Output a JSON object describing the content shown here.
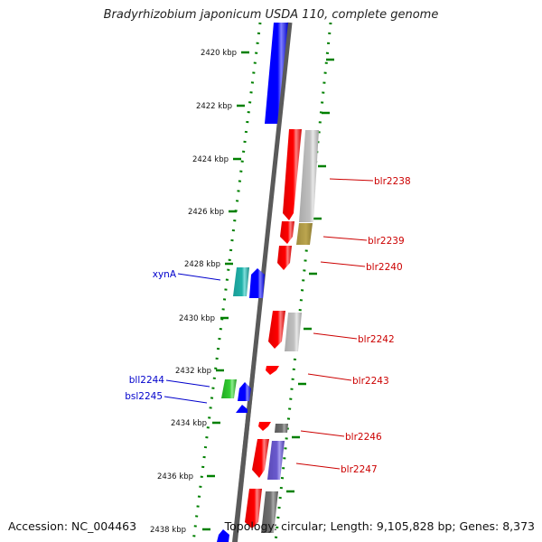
{
  "title": "Bradyrhizobium japonicum USDA 110, complete genome",
  "accession_text": "Accession: NC_004463",
  "summary_text": "Topology: circular; Length: 9,105,828 bp; Genes: 8,373",
  "colors": {
    "axis": "#808080",
    "ticks": "#008000",
    "forward_label": "#cc0000",
    "reverse_label": "#0000cc",
    "grey_feature": "#b8b8b8",
    "dark_feature": "#6e6e6e",
    "olive_feature": "#b8a04a",
    "purple_feature": "#6a5acd",
    "cyan_feature": "#20b2aa",
    "green_feature": "#32cd32",
    "blue_feature": "#0000ff",
    "red_feature": "#ff0000"
  },
  "scale_labels": [
    "2420 kbp",
    "2422 kbp",
    "2424 kbp",
    "2426 kbp",
    "2428 kbp",
    "2430 kbp",
    "2432 kbp",
    "2434 kbp",
    "2436 kbp",
    "2438 kbp"
  ],
  "gene_labels": {
    "right": [
      "blr2238",
      "blr2239",
      "blr2240",
      "blr2242",
      "blr2243",
      "blr2246",
      "blr2247"
    ],
    "left": [
      "xynA",
      "bll2244",
      "bsl2245"
    ]
  },
  "features": [
    {
      "name": "blue-gene-large",
      "strand": "reverse",
      "start": 2418.9,
      "end": 2422.4,
      "color": "blue"
    },
    {
      "name": "blr2238",
      "strand": "forward",
      "start": 2423.5,
      "end": 2426.9,
      "color": "red",
      "label": "blr2238"
    },
    {
      "name": "grey-gene-1",
      "strand": "forward-outer",
      "start": 2423.5,
      "end": 2427.0,
      "color": "grey"
    },
    {
      "name": "blr2239",
      "strand": "forward",
      "start": 2427.0,
      "end": 2427.8,
      "color": "red",
      "label": "blr2239"
    },
    {
      "name": "olive-gene",
      "strand": "forward-outer",
      "start": 2427.0,
      "end": 2427.8,
      "color": "olive"
    },
    {
      "name": "blr2240",
      "strand": "forward",
      "start": 2427.9,
      "end": 2428.8,
      "color": "red",
      "label": "blr2240"
    },
    {
      "name": "xynA",
      "strand": "reverse-outer",
      "start": 2428.8,
      "end": 2429.9,
      "color": "cyan",
      "label": "xynA"
    },
    {
      "name": "blue-gene-mid",
      "strand": "reverse",
      "start": 2428.8,
      "end": 2429.9,
      "color": "blue"
    },
    {
      "name": "blr2242",
      "strand": "forward",
      "start": 2430.0,
      "end": 2431.5,
      "color": "red",
      "label": "blr2242"
    },
    {
      "name": "grey-gene-2",
      "strand": "forward-outer",
      "start": 2430.0,
      "end": 2431.5,
      "color": "grey"
    },
    {
      "name": "blr2243",
      "strand": "forward",
      "start": 2432.0,
      "end": 2432.4,
      "color": "red",
      "label": "blr2243"
    },
    {
      "name": "bll2244",
      "strand": "reverse-outer",
      "start": 2432.5,
      "end": 2433.2,
      "color": "green",
      "label": "bll2244"
    },
    {
      "name": "blue-gene-small",
      "strand": "reverse",
      "start": 2432.5,
      "end": 2433.2,
      "color": "blue"
    },
    {
      "name": "bsl2245",
      "strand": "reverse",
      "start": 2433.3,
      "end": 2433.6,
      "color": "blue",
      "label": "bsl2245"
    },
    {
      "name": "red-small",
      "strand": "forward",
      "start": 2434.1,
      "end": 2434.4,
      "color": "red"
    },
    {
      "name": "blr2246",
      "strand": "forward-outer",
      "start": 2434.1,
      "end": 2434.4,
      "color": "dark",
      "label": "blr2246"
    },
    {
      "name": "blr2247",
      "strand": "forward",
      "start": 2434.8,
      "end": 2436.4,
      "color": "red",
      "label": "blr2247"
    },
    {
      "name": "purple-gene",
      "strand": "forward-outer",
      "start": 2434.8,
      "end": 2436.4,
      "color": "purple"
    },
    {
      "name": "red-bottom",
      "strand": "forward",
      "start": 2436.9,
      "end": 2438.2,
      "color": "red"
    },
    {
      "name": "dark-bottom",
      "strand": "forward-outer",
      "start": 2436.9,
      "end": 2438.2,
      "color": "dark"
    },
    {
      "name": "blue-bottom",
      "strand": "reverse",
      "start": 2438.8,
      "end": 2439.2,
      "color": "blue"
    }
  ]
}
